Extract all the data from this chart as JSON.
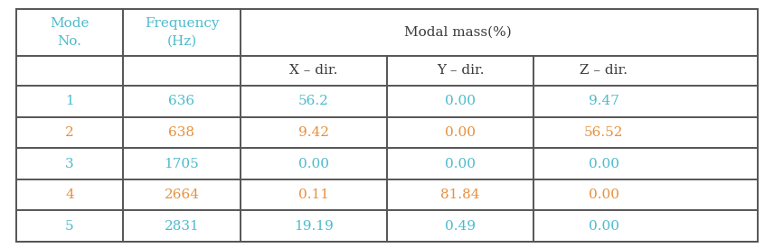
{
  "header_col0": "Mode\nNo.",
  "header_col1": "Frequency\n(Hz)",
  "header_modal": "Modal mass(%)",
  "header2": [
    "X – dir.",
    "Y – dir.",
    "Z – dir."
  ],
  "rows": [
    [
      "1",
      "636",
      "56.2",
      "0.00",
      "9.47"
    ],
    [
      "2",
      "638",
      "9.42",
      "0.00",
      "56.52"
    ],
    [
      "3",
      "1705",
      "0.00",
      "0.00",
      "0.00"
    ],
    [
      "4",
      "2664",
      "0.11",
      "81.84",
      "0.00"
    ],
    [
      "5",
      "2831",
      "19.19",
      "0.49",
      "0.00"
    ]
  ],
  "row_colors": [
    "#4DBBCC",
    "#E8903C",
    "#4DBBCC",
    "#E8903C",
    "#4DBBCC"
  ],
  "text_color_cyan": "#4DBBCC",
  "text_color_dark": "#3A3A3A",
  "bg_color": "#FFFFFF",
  "border_color": "#555555",
  "font_size_header": 11,
  "font_size_data": 11
}
